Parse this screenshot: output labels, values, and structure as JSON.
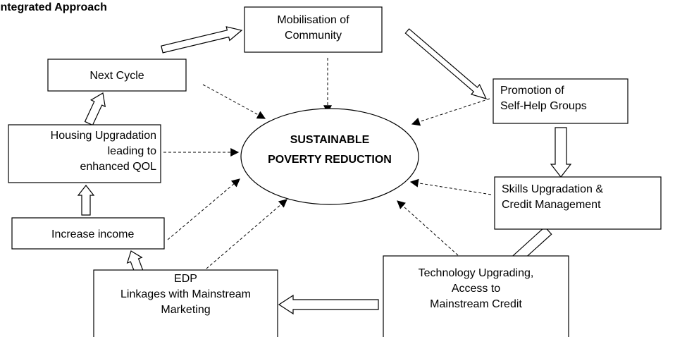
{
  "title": "Integrated Approach",
  "center": {
    "lines": [
      "SUSTAINABLE",
      "POVERTY REDUCTION"
    ]
  },
  "nodes": [
    {
      "lines": [
        "Mobilisation of",
        "Community"
      ]
    },
    {
      "lines": [
        "Promotion of",
        "Self-Help Groups"
      ]
    },
    {
      "lines": [
        "Skills Upgradation &",
        "Credit Management"
      ]
    },
    {
      "lines": [
        "Technology Upgrading,",
        "Access to",
        "Mainstream Credit"
      ]
    },
    {
      "lines": [
        "EDP",
        "Linkages with Mainstream",
        "Marketing"
      ]
    },
    {
      "lines": [
        "Increase income"
      ]
    },
    {
      "lines": [
        "Housing Upgradation",
        "leading to",
        "enhanced QOL"
      ]
    },
    {
      "lines": [
        "Next Cycle"
      ]
    }
  ]
}
